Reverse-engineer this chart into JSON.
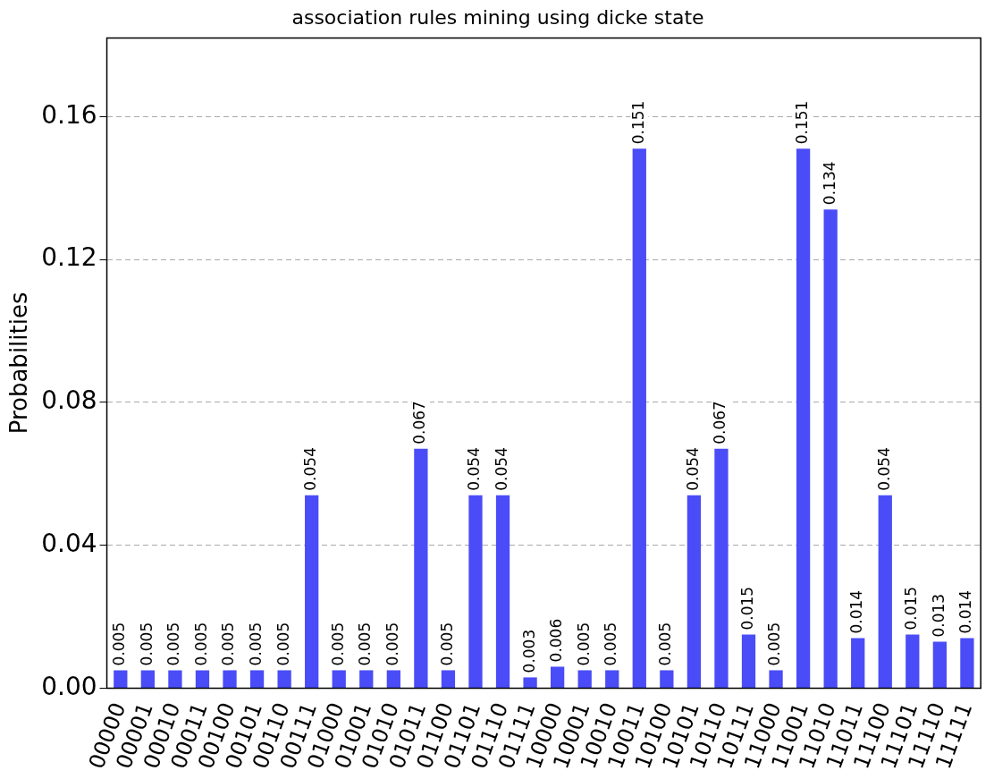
{
  "chart_data": {
    "type": "bar",
    "title": "association rules mining using dicke state",
    "ylabel": "Probabilities",
    "categories": [
      "00000",
      "00001",
      "00010",
      "00011",
      "00100",
      "00101",
      "00110",
      "00111",
      "01000",
      "01001",
      "01010",
      "01011",
      "01100",
      "01101",
      "01110",
      "01111",
      "10000",
      "10001",
      "10010",
      "10011",
      "10100",
      "10101",
      "10110",
      "10111",
      "11000",
      "11001",
      "11010",
      "11011",
      "11100",
      "11101",
      "11110",
      "11111"
    ],
    "values": [
      0.005,
      0.005,
      0.005,
      0.005,
      0.005,
      0.005,
      0.005,
      0.054,
      0.005,
      0.005,
      0.005,
      0.067,
      0.005,
      0.054,
      0.054,
      0.003,
      0.006,
      0.005,
      0.005,
      0.151,
      0.005,
      0.054,
      0.067,
      0.015,
      0.005,
      0.151,
      0.134,
      0.014,
      0.054,
      0.015,
      0.013,
      0.014
    ],
    "color": "#4a4cf7",
    "ylim": [
      0,
      0.182
    ],
    "yticks": [
      {
        "value": 0,
        "label": "0.00"
      },
      {
        "value": 0.04,
        "label": "0.04"
      },
      {
        "value": 0.08,
        "label": "0.08"
      },
      {
        "value": 0.12,
        "label": "0.12"
      },
      {
        "value": 0.16,
        "label": "0.16"
      }
    ],
    "grid": "y",
    "data_labels": true
  }
}
